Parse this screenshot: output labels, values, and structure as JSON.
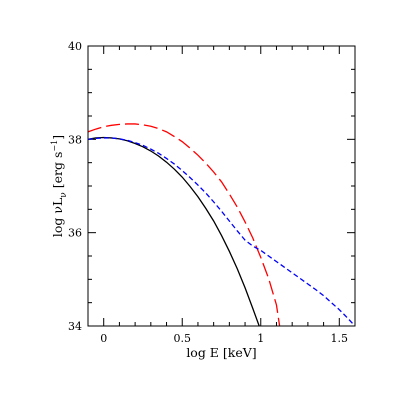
{
  "chart_data": {
    "type": "line",
    "xlabel": "log E [keV]",
    "ylabel": "log νL",
    "ylabel_subscript": "ν",
    "ylabel_units": "[erg s",
    "ylabel_units_sup": "−1",
    "ylabel_units_close": "]",
    "xlim": [
      -0.1,
      1.6
    ],
    "ylim": [
      34,
      40
    ],
    "x_ticks": [
      0,
      0.5,
      1,
      1.5
    ],
    "x_tick_labels": [
      "0",
      "0.5",
      "1",
      "1.5"
    ],
    "y_ticks": [
      34,
      36,
      38,
      40
    ],
    "y_tick_labels": [
      "34",
      "36",
      "38",
      "40"
    ],
    "grid": false,
    "series": [
      {
        "color": "#000000",
        "style": "solid",
        "x": [
          -0.1,
          -0.05,
          0.0,
          0.05,
          0.1,
          0.15,
          0.2,
          0.25,
          0.3,
          0.35,
          0.4,
          0.45,
          0.5,
          0.55,
          0.6,
          0.65,
          0.7,
          0.75,
          0.8,
          0.85,
          0.9,
          0.95,
          0.99
        ],
        "y": [
          38.0,
          38.03,
          38.04,
          38.03,
          38.01,
          37.97,
          37.91,
          37.84,
          37.75,
          37.64,
          37.51,
          37.36,
          37.19,
          36.99,
          36.77,
          36.52,
          36.25,
          35.94,
          35.6,
          35.23,
          34.82,
          34.37,
          34.0
        ]
      },
      {
        "color": "#ff0000",
        "style": "long-dash",
        "x": [
          -0.1,
          -0.05,
          0.0,
          0.05,
          0.1,
          0.15,
          0.2,
          0.25,
          0.3,
          0.35,
          0.4,
          0.45,
          0.5,
          0.55,
          0.6,
          0.65,
          0.7,
          0.75,
          0.8,
          0.85,
          0.9,
          0.95,
          1.0,
          1.05,
          1.1,
          1.12
        ],
        "y": [
          38.16,
          38.22,
          38.27,
          38.3,
          38.32,
          38.33,
          38.33,
          38.31,
          38.28,
          38.23,
          38.16,
          38.06,
          37.95,
          37.81,
          37.66,
          37.49,
          37.3,
          37.09,
          36.83,
          36.55,
          36.23,
          35.88,
          35.47,
          35.02,
          34.45,
          34.0
        ]
      },
      {
        "color": "#0000ff",
        "style": "short-dash",
        "x": [
          -0.1,
          -0.05,
          0.0,
          0.05,
          0.1,
          0.15,
          0.2,
          0.25,
          0.3,
          0.35,
          0.4,
          0.45,
          0.5,
          0.55,
          0.6,
          0.65,
          0.7,
          0.75,
          0.8,
          0.85,
          0.9,
          0.95,
          1.0,
          1.05,
          1.1,
          1.15,
          1.2,
          1.25,
          1.3,
          1.35,
          1.4,
          1.45,
          1.5,
          1.55,
          1.6
        ],
        "y": [
          38.0,
          38.02,
          38.03,
          38.03,
          38.01,
          37.98,
          37.93,
          37.87,
          37.79,
          37.7,
          37.59,
          37.47,
          37.33,
          37.18,
          37.02,
          36.85,
          36.66,
          36.46,
          36.25,
          36.04,
          35.84,
          35.71,
          35.62,
          35.5,
          35.38,
          35.26,
          35.14,
          35.02,
          34.9,
          34.78,
          34.65,
          34.5,
          34.35,
          34.18,
          34.0
        ]
      }
    ]
  }
}
